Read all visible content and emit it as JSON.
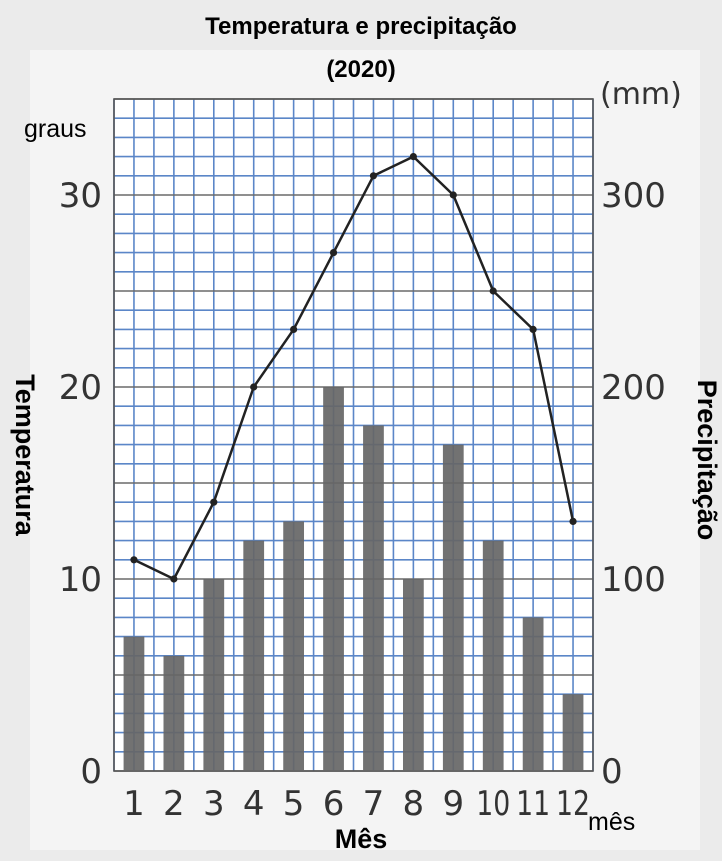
{
  "chart_data": {
    "type": "bar+line",
    "title": "Temperatura e precipitação",
    "subtitle": "(2020)",
    "xlabel": "Mês",
    "x_unit": "mês",
    "ylabel_left": "Temperatura",
    "ylabel_left_unit": "graus",
    "ylabel_right": "Precipitação",
    "ylabel_right_unit": "(mm)",
    "categories": [
      "1",
      "2",
      "3",
      "4",
      "5",
      "6",
      "7",
      "8",
      "9",
      "10",
      "11",
      "12"
    ],
    "y_left_ticks": [
      "0",
      "10",
      "20",
      "30"
    ],
    "y_right_ticks": [
      "0",
      "100",
      "200",
      "300"
    ],
    "y_left_range": [
      0,
      35
    ],
    "y_right_range": [
      0,
      350
    ],
    "grid": true,
    "series": [
      {
        "kind": "bar",
        "axis": "right",
        "color": "#666666",
        "values": [
          70,
          60,
          100,
          120,
          130,
          200,
          180,
          100,
          170,
          120,
          80,
          40
        ]
      },
      {
        "kind": "line",
        "axis": "left",
        "color": "#222222",
        "values": [
          11,
          10,
          14,
          20,
          23,
          27,
          31,
          32,
          30,
          25,
          23,
          13
        ]
      }
    ]
  }
}
